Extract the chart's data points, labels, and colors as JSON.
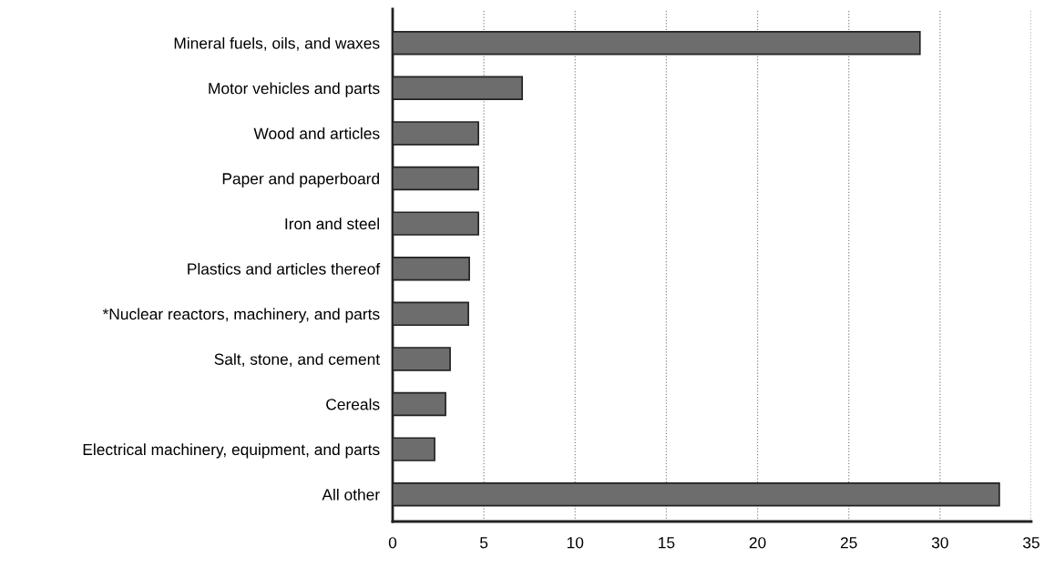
{
  "chart_data": {
    "type": "bar",
    "orientation": "horizontal",
    "categories": [
      "Mineral fuels, oils, and waxes",
      "Motor vehicles and parts",
      "Wood and articles",
      "Paper and paperboard",
      "Iron and steel",
      "Plastics and articles thereof",
      "*Nuclear reactors, machinery, and parts",
      "Salt, stone, and cement",
      "Cereals",
      "Electrical machinery, equipment, and parts",
      "All other"
    ],
    "values": [
      28.9,
      7.1,
      4.7,
      4.7,
      4.7,
      4.2,
      4.15,
      3.15,
      2.9,
      2.3,
      33.25
    ],
    "color": "#6d6d6d",
    "xlim": [
      0,
      35
    ],
    "xticks": [
      0,
      5,
      10,
      15,
      20,
      25,
      30,
      35
    ],
    "grid": "x"
  }
}
